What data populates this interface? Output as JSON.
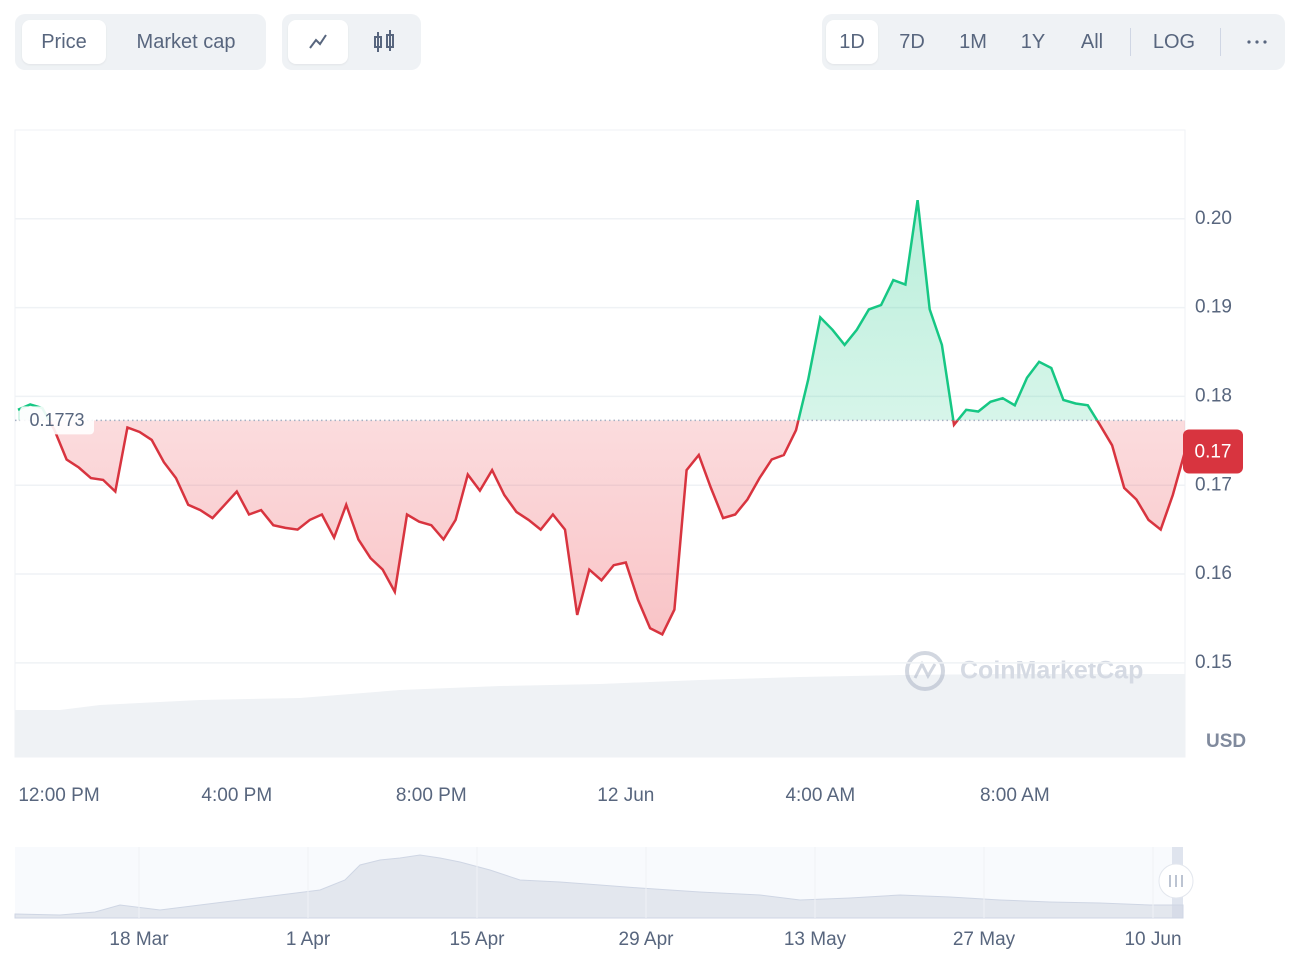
{
  "toolbar": {
    "metric_tabs": [
      "Price",
      "Market cap"
    ],
    "ranges": [
      "1D",
      "7D",
      "1M",
      "1Y",
      "All",
      "LOG"
    ]
  },
  "chart_data": {
    "type": "line",
    "categories": [
      null,
      null,
      "12:00 PM",
      null,
      null,
      null,
      null,
      null,
      null,
      null,
      null,
      null,
      null,
      null,
      null,
      null,
      null,
      null,
      "4:00 PM",
      null,
      null,
      null,
      null,
      null,
      null,
      null,
      null,
      null,
      null,
      null,
      null,
      null,
      null,
      null,
      "8:00 PM",
      null,
      null,
      null,
      null,
      null,
      null,
      null,
      null,
      null,
      null,
      null,
      null,
      null,
      null,
      null,
      "12 Jun",
      null,
      null,
      null,
      null,
      null,
      null,
      null,
      null,
      null,
      null,
      null,
      null,
      null,
      null,
      null,
      "4:00 AM",
      null,
      null,
      null,
      null,
      null,
      null,
      null,
      null,
      null,
      null,
      null,
      null,
      null,
      null,
      null,
      "8:00 AM",
      null,
      null,
      null,
      null,
      null,
      null,
      null,
      null,
      null,
      null,
      null,
      null,
      null,
      null
    ],
    "series": [
      {
        "name": "Price",
        "values": [
          0.1785,
          0.1791,
          0.1787,
          0.1762,
          0.1729,
          0.172,
          0.1708,
          0.1706,
          0.1693,
          0.1765,
          0.176,
          0.1751,
          0.1726,
          0.1708,
          0.1678,
          0.1672,
          0.1663,
          0.1678,
          0.1693,
          0.1667,
          0.1672,
          0.1655,
          0.1652,
          0.165,
          0.1661,
          0.1667,
          0.1641,
          0.1678,
          0.1639,
          0.1618,
          0.1605,
          0.158,
          0.1667,
          0.1659,
          0.1655,
          0.1639,
          0.1661,
          0.1712,
          0.1694,
          0.1717,
          0.1689,
          0.167,
          0.1661,
          0.165,
          0.1667,
          0.165,
          0.1554,
          0.1605,
          0.1593,
          0.161,
          0.1613,
          0.1571,
          0.1539,
          0.1532,
          0.156,
          0.1717,
          0.1734,
          0.1697,
          0.1663,
          0.1667,
          0.1684,
          0.1708,
          0.1729,
          0.1734,
          0.1762,
          0.1819,
          0.1889,
          0.1875,
          0.1858,
          0.1875,
          0.1898,
          0.1903,
          0.1931,
          0.1926,
          0.2021,
          0.1898,
          0.1858,
          0.1768,
          0.1785,
          0.1783,
          0.1794,
          0.1798,
          0.179,
          0.1821,
          0.1839,
          0.1832,
          0.1796,
          0.1792,
          0.179,
          0.1768,
          0.1745,
          0.1697,
          0.1684,
          0.1661,
          0.165,
          0.1689,
          0.1738
        ]
      }
    ],
    "reference": 0.1773,
    "current_label": "0.17",
    "up_color": "#16c784",
    "down_color": "#d8343f",
    "ylim": [
      0.1394,
      0.21
    ],
    "yticks": [
      0.15,
      0.16,
      0.17,
      0.18,
      0.19,
      {
        "value": 0.2,
        "label": "0.20"
      }
    ],
    "grid": true,
    "unit": "USD",
    "watermark": "CoinMarketCap"
  },
  "navigator": {
    "labels": [
      "18 Mar",
      "1 Apr",
      "15 Apr",
      "29 Apr",
      "13 May",
      "27 May",
      "10 Jun"
    ]
  }
}
